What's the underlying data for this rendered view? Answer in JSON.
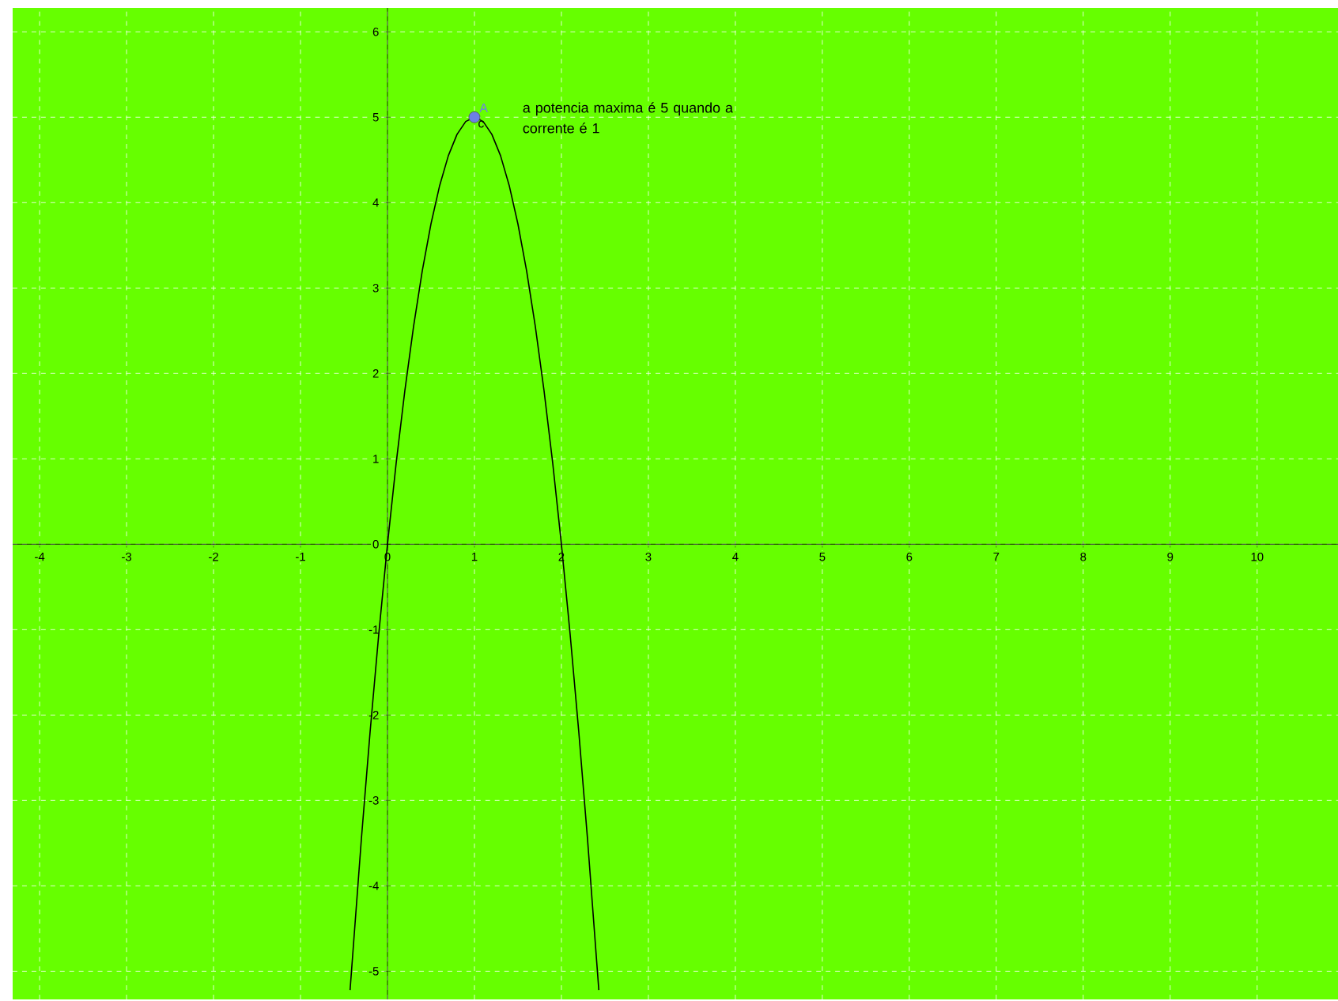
{
  "chart_data": {
    "type": "line",
    "xlim": [
      -4.31,
      10.93
    ],
    "ylim": [
      -5.33,
      6.28
    ],
    "xticks": [
      -4,
      -3,
      -2,
      -1,
      0,
      1,
      2,
      3,
      4,
      5,
      6,
      7,
      8,
      9,
      10
    ],
    "yticks": [
      -5,
      -4,
      -3,
      -2,
      -1,
      0,
      1,
      2,
      3,
      4,
      5,
      6
    ],
    "grid": true,
    "annotations": [
      "a potencia maxima é 5 quando a corrente é 1"
    ],
    "series": [
      {
        "name": "c",
        "color": "#000000",
        "marker": "none",
        "line_style": "solid",
        "x": [
          -0.43,
          -0.3,
          -0.2,
          -0.1,
          0,
          0.1,
          0.2,
          0.3,
          0.4,
          0.5,
          0.6,
          0.7,
          0.8,
          0.9,
          1.0,
          1.1,
          1.2,
          1.3,
          1.4,
          1.5,
          1.6,
          1.7,
          1.8,
          1.9,
          2.0,
          2.1,
          2.2,
          2.3,
          2.43
        ],
        "values": [
          -5.22,
          -3.45,
          -2.2,
          -1.05,
          0,
          0.95,
          1.8,
          2.55,
          3.2,
          3.75,
          4.2,
          4.55,
          4.8,
          4.95,
          5,
          4.95,
          4.8,
          4.55,
          4.2,
          3.75,
          3.2,
          2.55,
          1.8,
          0.95,
          0,
          -1.05,
          -2.2,
          -3.45,
          -5.22
        ]
      },
      {
        "name": "A",
        "type": "scatter",
        "color": "#6d7fe6",
        "marker": "circle",
        "x": [
          1
        ],
        "values": [
          5
        ]
      }
    ]
  }
}
